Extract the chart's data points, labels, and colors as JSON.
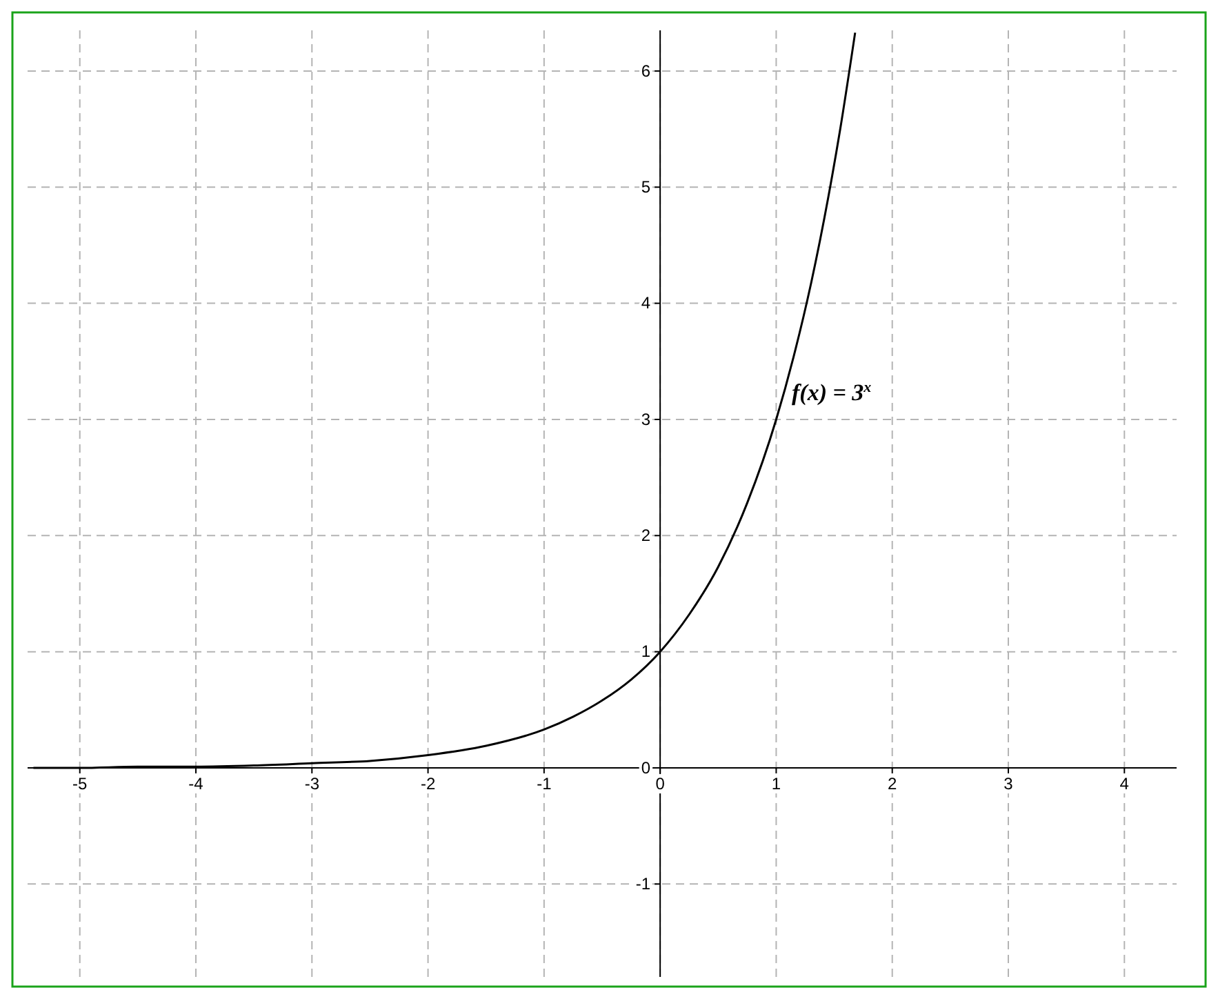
{
  "chart_data": {
    "type": "line",
    "x": [
      -5.4,
      -5,
      -4.5,
      -4,
      -3.5,
      -3,
      -2.5,
      -2,
      -1.5,
      -1,
      -0.75,
      -0.5,
      -0.25,
      0,
      0.25,
      0.5,
      0.75,
      1,
      1.15,
      1.3,
      1.45,
      1.55,
      1.68
    ],
    "series": [
      {
        "color": "#000000",
        "values": [
          0,
          0,
          0.01,
          0.01,
          0.02,
          0.04,
          0.06,
          0.11,
          0.19,
          0.33,
          0.44,
          0.58,
          0.76,
          1,
          1.32,
          1.73,
          2.28,
          3,
          3.54,
          4.17,
          4.92,
          5.49,
          6.33
        ]
      }
    ],
    "xlim": [
      -5.45,
      4.45
    ],
    "ylim": [
      -1.8,
      6.35
    ],
    "xticks": [
      -5,
      -4,
      -3,
      -2,
      -1,
      0,
      1,
      2,
      3,
      4
    ],
    "yticks": [
      -1,
      0,
      1,
      2,
      3,
      4,
      5,
      6
    ],
    "grid": true,
    "annotations": [
      "f(x) = 3$^{x}$"
    ]
  }
}
